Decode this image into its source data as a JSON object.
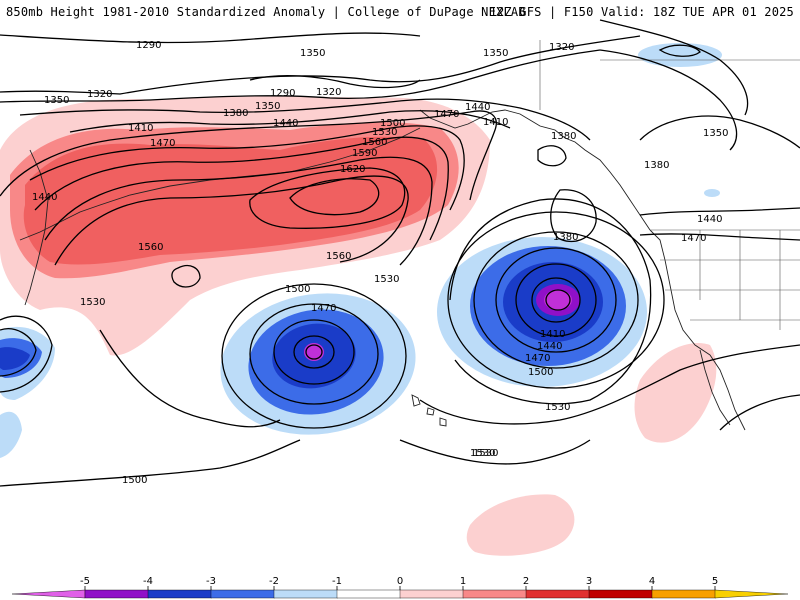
{
  "header": {
    "left_title": "850mb Height 1981-2010 Standardized Anomaly | College of DuPage NEXLAB",
    "right_title": "12Z GFS | F150 Valid: 18Z TUE APR 01 2025"
  },
  "contour_labels": [
    "1290",
    "1320",
    "1350",
    "1350",
    "1320",
    "1290",
    "1350",
    "1380",
    "1410",
    "1440",
    "1470",
    "1500",
    "1530",
    "1560",
    "1590",
    "1620",
    "1470",
    "1440",
    "1410",
    "1380",
    "1350",
    "1380",
    "1440",
    "1470",
    "1380",
    "1410",
    "1440",
    "1470",
    "1500",
    "1530",
    "1530",
    "1560",
    "1560",
    "1530",
    "1500",
    "1470",
    "1440",
    "1530",
    "1530",
    "1500",
    "1320",
    "1350"
  ],
  "colorbar": {
    "ticks": [
      "-5",
      "-4",
      "-3",
      "-2",
      "-1",
      "0",
      "1",
      "2",
      "3",
      "4",
      "5"
    ],
    "colors": [
      "#e060e8",
      "#9010c8",
      "#1a3cc8",
      "#3c6ce8",
      "#bcdcf8",
      "#ffffff",
      "#fcd0d0",
      "#f88888",
      "#e03030",
      "#c00000",
      "#f8a000",
      "#f8d000"
    ]
  },
  "fill_colors": {
    "pink_light": "#fcd0d0",
    "pink_mid": "#f88080",
    "red": "#f06060",
    "blue_light": "#bcdcf8",
    "blue_mid": "#5a8ef0",
    "blue_dark": "#1a40c8",
    "purple": "#9020c8",
    "magenta": "#c030d8"
  }
}
